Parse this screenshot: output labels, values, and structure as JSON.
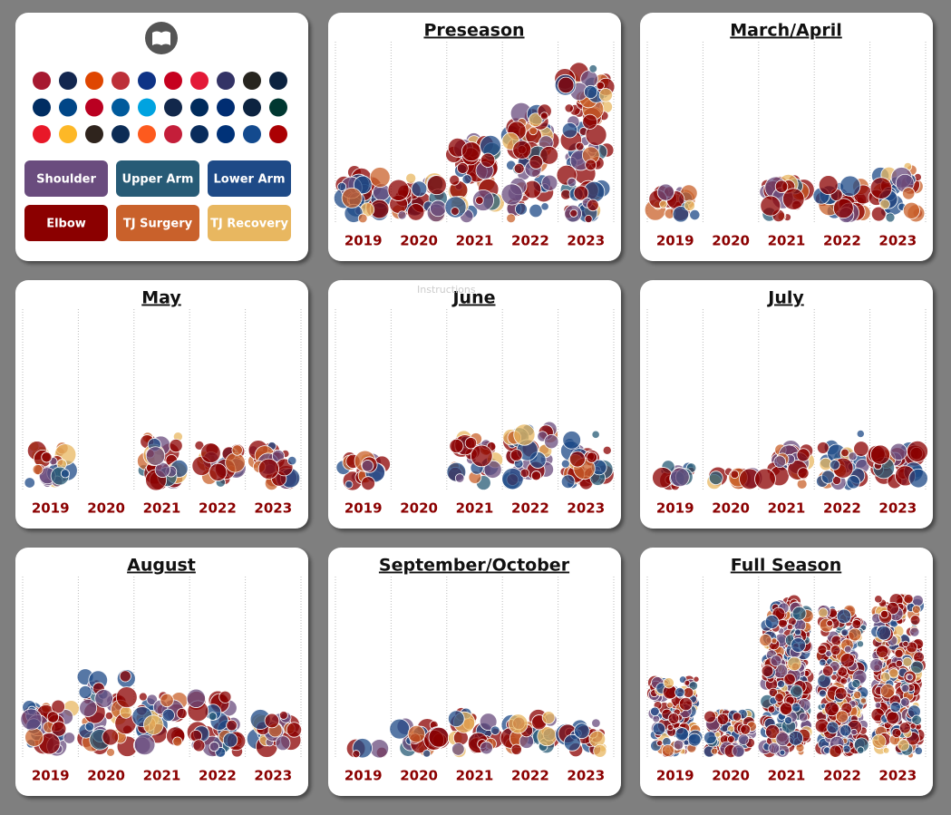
{
  "instructions": "Instructions",
  "legend": {
    "items": [
      {
        "name": "Shoulder",
        "color": "#6a4c7e"
      },
      {
        "name": "Upper Arm",
        "color": "#275b76"
      },
      {
        "name": "Lower Arm",
        "color": "#1e4a87"
      },
      {
        "name": "Elbow",
        "color": "#8b0000"
      },
      {
        "name": "TJ Surgery",
        "color": "#c9612b"
      },
      {
        "name": "TJ Recovery",
        "color": "#e8b760"
      }
    ]
  },
  "chart_data": [
    {
      "type": "bubble",
      "title": "Preseason",
      "categories": [
        "2019",
        "2020",
        "2021",
        "2022",
        "2023"
      ],
      "values": [
        30,
        25,
        45,
        60,
        80
      ],
      "ylim": [
        0,
        90
      ]
    },
    {
      "type": "bubble",
      "title": "March/April",
      "categories": [
        "2019",
        "2020",
        "2021",
        "2022",
        "2023"
      ],
      "values": [
        20,
        0,
        25,
        25,
        30
      ],
      "ylim": [
        0,
        90
      ]
    },
    {
      "type": "bubble",
      "title": "May",
      "categories": [
        "2019",
        "2020",
        "2021",
        "2022",
        "2023"
      ],
      "values": [
        25,
        0,
        30,
        25,
        25
      ],
      "ylim": [
        0,
        90
      ]
    },
    {
      "type": "bubble",
      "title": "June",
      "categories": [
        "2019",
        "2020",
        "2021",
        "2022",
        "2023"
      ],
      "values": [
        20,
        0,
        30,
        35,
        30
      ],
      "ylim": [
        0,
        90
      ]
    },
    {
      "type": "bubble",
      "title": "July",
      "categories": [
        "2019",
        "2020",
        "2021",
        "2022",
        "2023"
      ],
      "values": [
        15,
        12,
        25,
        30,
        25
      ],
      "ylim": [
        0,
        90
      ]
    },
    {
      "type": "bubble",
      "title": "August",
      "categories": [
        "2019",
        "2020",
        "2021",
        "2022",
        "2023"
      ],
      "values": [
        30,
        45,
        35,
        35,
        25
      ],
      "ylim": [
        0,
        90
      ]
    },
    {
      "type": "bubble",
      "title": "September/October",
      "categories": [
        "2019",
        "2020",
        "2021",
        "2022",
        "2023"
      ],
      "values": [
        5,
        20,
        25,
        25,
        20
      ],
      "ylim": [
        0,
        90
      ]
    },
    {
      "type": "bubble",
      "title": "Full Season",
      "categories": [
        "2019",
        "2020",
        "2021",
        "2022",
        "2023"
      ],
      "values": [
        150,
        90,
        300,
        280,
        300
      ],
      "ylim": [
        0,
        330
      ]
    }
  ]
}
